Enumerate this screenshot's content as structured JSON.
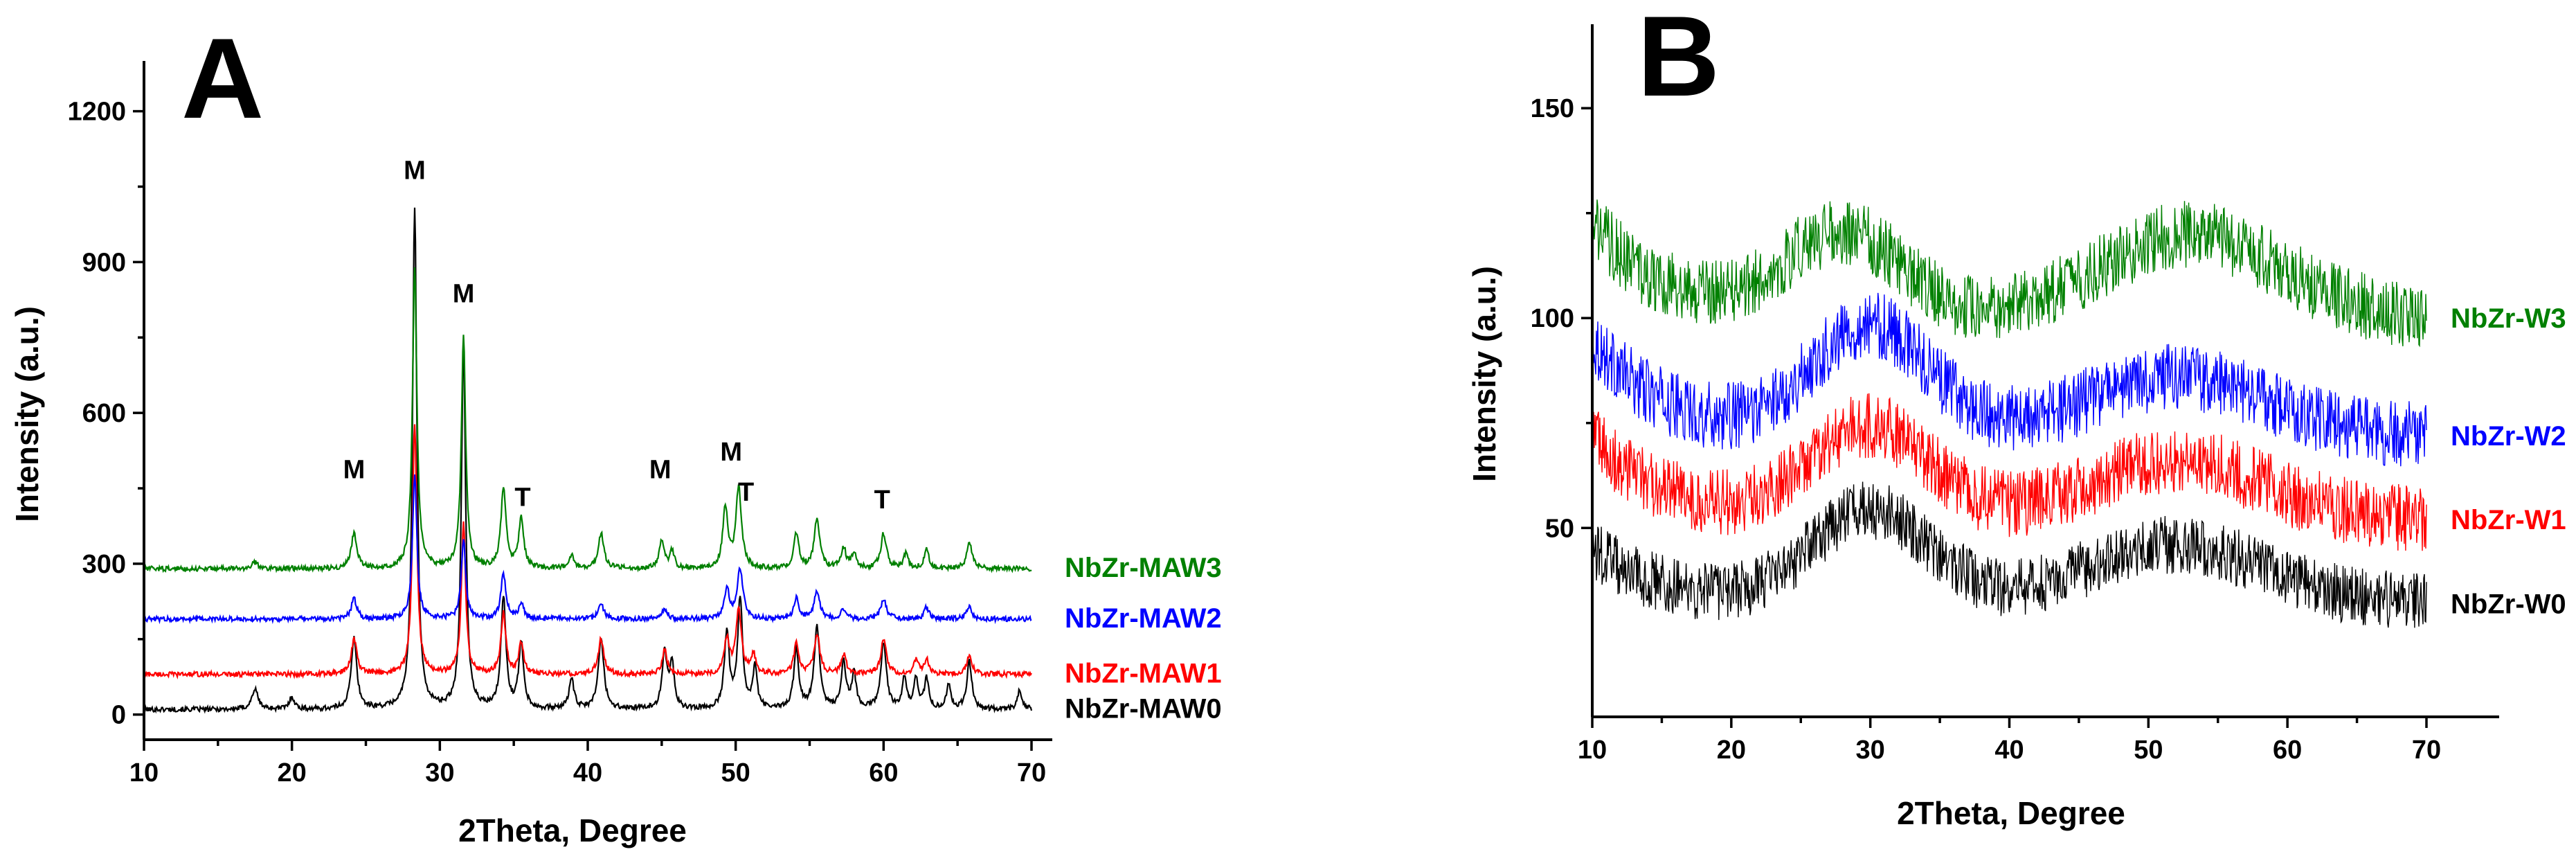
{
  "chart_data": [
    {
      "type": "line",
      "panel": "A",
      "xlabel": "2Theta, Degree",
      "ylabel": "Intensity (a.u.)",
      "xlim": [
        10,
        70
      ],
      "ylim": [
        -50,
        1300
      ],
      "xticks": [
        10,
        20,
        30,
        40,
        50,
        60,
        70
      ],
      "yticks": [
        0,
        300,
        600,
        900,
        1200
      ],
      "grid": false,
      "series": [
        {
          "name": "NbZr-MAW0",
          "color": "#000000",
          "baseline": 10,
          "peaks": [
            [
              17.5,
              40,
              0.5
            ],
            [
              20.0,
              25,
              0.4
            ],
            [
              24.2,
              140,
              0.45
            ],
            [
              28.3,
              1000,
              0.35
            ],
            [
              31.6,
              720,
              0.35
            ],
            [
              34.3,
              220,
              0.4
            ],
            [
              35.5,
              130,
              0.4
            ],
            [
              38.9,
              60,
              0.4
            ],
            [
              40.9,
              140,
              0.45
            ],
            [
              45.2,
              110,
              0.4
            ],
            [
              45.7,
              90,
              0.35
            ],
            [
              49.4,
              150,
              0.4
            ],
            [
              50.3,
              220,
              0.4
            ],
            [
              51.3,
              80,
              0.35
            ],
            [
              54.1,
              120,
              0.4
            ],
            [
              55.5,
              160,
              0.45
            ],
            [
              57.3,
              90,
              0.4
            ],
            [
              58.0,
              70,
              0.35
            ],
            [
              60.0,
              130,
              0.45
            ],
            [
              61.4,
              60,
              0.35
            ],
            [
              62.2,
              60,
              0.35
            ],
            [
              62.9,
              60,
              0.35
            ],
            [
              64.4,
              50,
              0.35
            ],
            [
              65.8,
              95,
              0.4
            ],
            [
              69.2,
              40,
              0.35
            ]
          ]
        },
        {
          "name": "NbZr-MAW1",
          "color": "#ff0000",
          "baseline": 80,
          "peaks": [
            [
              24.2,
              70,
              0.45
            ],
            [
              28.3,
              500,
              0.35
            ],
            [
              31.6,
              300,
              0.35
            ],
            [
              34.3,
              120,
              0.4
            ],
            [
              35.5,
              60,
              0.4
            ],
            [
              40.9,
              70,
              0.45
            ],
            [
              45.2,
              50,
              0.4
            ],
            [
              49.4,
              70,
              0.4
            ],
            [
              50.2,
              130,
              0.45
            ],
            [
              51.2,
              40,
              0.35
            ],
            [
              54.1,
              60,
              0.4
            ],
            [
              55.5,
              80,
              0.45
            ],
            [
              57.3,
              40,
              0.4
            ],
            [
              60.0,
              70,
              0.45
            ],
            [
              62.2,
              30,
              0.35
            ],
            [
              62.9,
              30,
              0.35
            ],
            [
              65.8,
              40,
              0.4
            ]
          ]
        },
        {
          "name": "NbZr-MAW2",
          "color": "#0000ff",
          "baseline": 190,
          "peaks": [
            [
              24.2,
              40,
              0.45
            ],
            [
              28.3,
              290,
              0.35
            ],
            [
              31.6,
              160,
              0.35
            ],
            [
              34.3,
              90,
              0.4
            ],
            [
              35.5,
              30,
              0.4
            ],
            [
              40.9,
              30,
              0.45
            ],
            [
              45.2,
              20,
              0.4
            ],
            [
              49.4,
              60,
              0.4
            ],
            [
              50.3,
              100,
              0.45
            ],
            [
              54.1,
              40,
              0.4
            ],
            [
              55.5,
              55,
              0.45
            ],
            [
              57.3,
              20,
              0.4
            ],
            [
              60.0,
              40,
              0.45
            ],
            [
              62.9,
              25,
              0.35
            ],
            [
              65.8,
              25,
              0.4
            ]
          ]
        },
        {
          "name": "NbZr-MAW3",
          "color": "#008000",
          "baseline": 290,
          "peaks": [
            [
              17.5,
              12,
              0.5
            ],
            [
              24.2,
              70,
              0.45
            ],
            [
              28.3,
              600,
              0.35
            ],
            [
              31.6,
              460,
              0.35
            ],
            [
              34.3,
              160,
              0.4
            ],
            [
              35.5,
              100,
              0.4
            ],
            [
              38.9,
              25,
              0.4
            ],
            [
              40.9,
              70,
              0.45
            ],
            [
              45.0,
              55,
              0.4
            ],
            [
              45.7,
              35,
              0.35
            ],
            [
              49.3,
              120,
              0.4
            ],
            [
              50.2,
              160,
              0.45
            ],
            [
              54.1,
              70,
              0.4
            ],
            [
              55.5,
              100,
              0.45
            ],
            [
              57.3,
              40,
              0.4
            ],
            [
              58.0,
              30,
              0.35
            ],
            [
              60.0,
              70,
              0.45
            ],
            [
              61.5,
              30,
              0.35
            ],
            [
              62.9,
              40,
              0.35
            ],
            [
              65.8,
              55,
              0.4
            ]
          ]
        }
      ],
      "annotations": [
        {
          "text": "M",
          "x": 24.2,
          "y": 470
        },
        {
          "text": "M",
          "x": 28.3,
          "y": 1065
        },
        {
          "text": "M",
          "x": 31.6,
          "y": 820
        },
        {
          "text": "T",
          "x": 35.6,
          "y": 415
        },
        {
          "text": "M",
          "x": 44.9,
          "y": 470
        },
        {
          "text": "M",
          "x": 49.7,
          "y": 505
        },
        {
          "text": "T",
          "x": 50.7,
          "y": 425
        },
        {
          "text": "T",
          "x": 59.9,
          "y": 410
        }
      ]
    },
    {
      "type": "line",
      "panel": "B",
      "xlabel": "2Theta, Degree",
      "ylabel": "Intensity (a.u.)",
      "xlim": [
        10,
        70
      ],
      "ylim": [
        5,
        170
      ],
      "xticks": [
        10,
        20,
        30,
        40,
        50,
        60,
        70
      ],
      "yticks": [
        50,
        100,
        150
      ],
      "grid": false,
      "series": [
        {
          "name": "NbZr-W0",
          "color": "#000000",
          "baseline": 32,
          "start": 45,
          "hump1": [
            30,
            22
          ],
          "hump2": [
            52,
            14
          ],
          "noise": 7
        },
        {
          "name": "NbZr-W1",
          "color": "#ff0000",
          "baseline": 52,
          "start": 72,
          "hump1": [
            30,
            22
          ],
          "hump2": [
            52,
            14
          ],
          "noise": 8
        },
        {
          "name": "NbZr-W2",
          "color": "#0000ff",
          "baseline": 72,
          "start": 95,
          "hump1": [
            30,
            26
          ],
          "hump2": [
            52,
            14
          ],
          "noise": 8
        },
        {
          "name": "NbZr-W3",
          "color": "#008000",
          "baseline": 100,
          "start": 123,
          "hump1": [
            28,
            20
          ],
          "hump2": [
            53,
            20
          ],
          "noise": 8
        }
      ]
    }
  ]
}
